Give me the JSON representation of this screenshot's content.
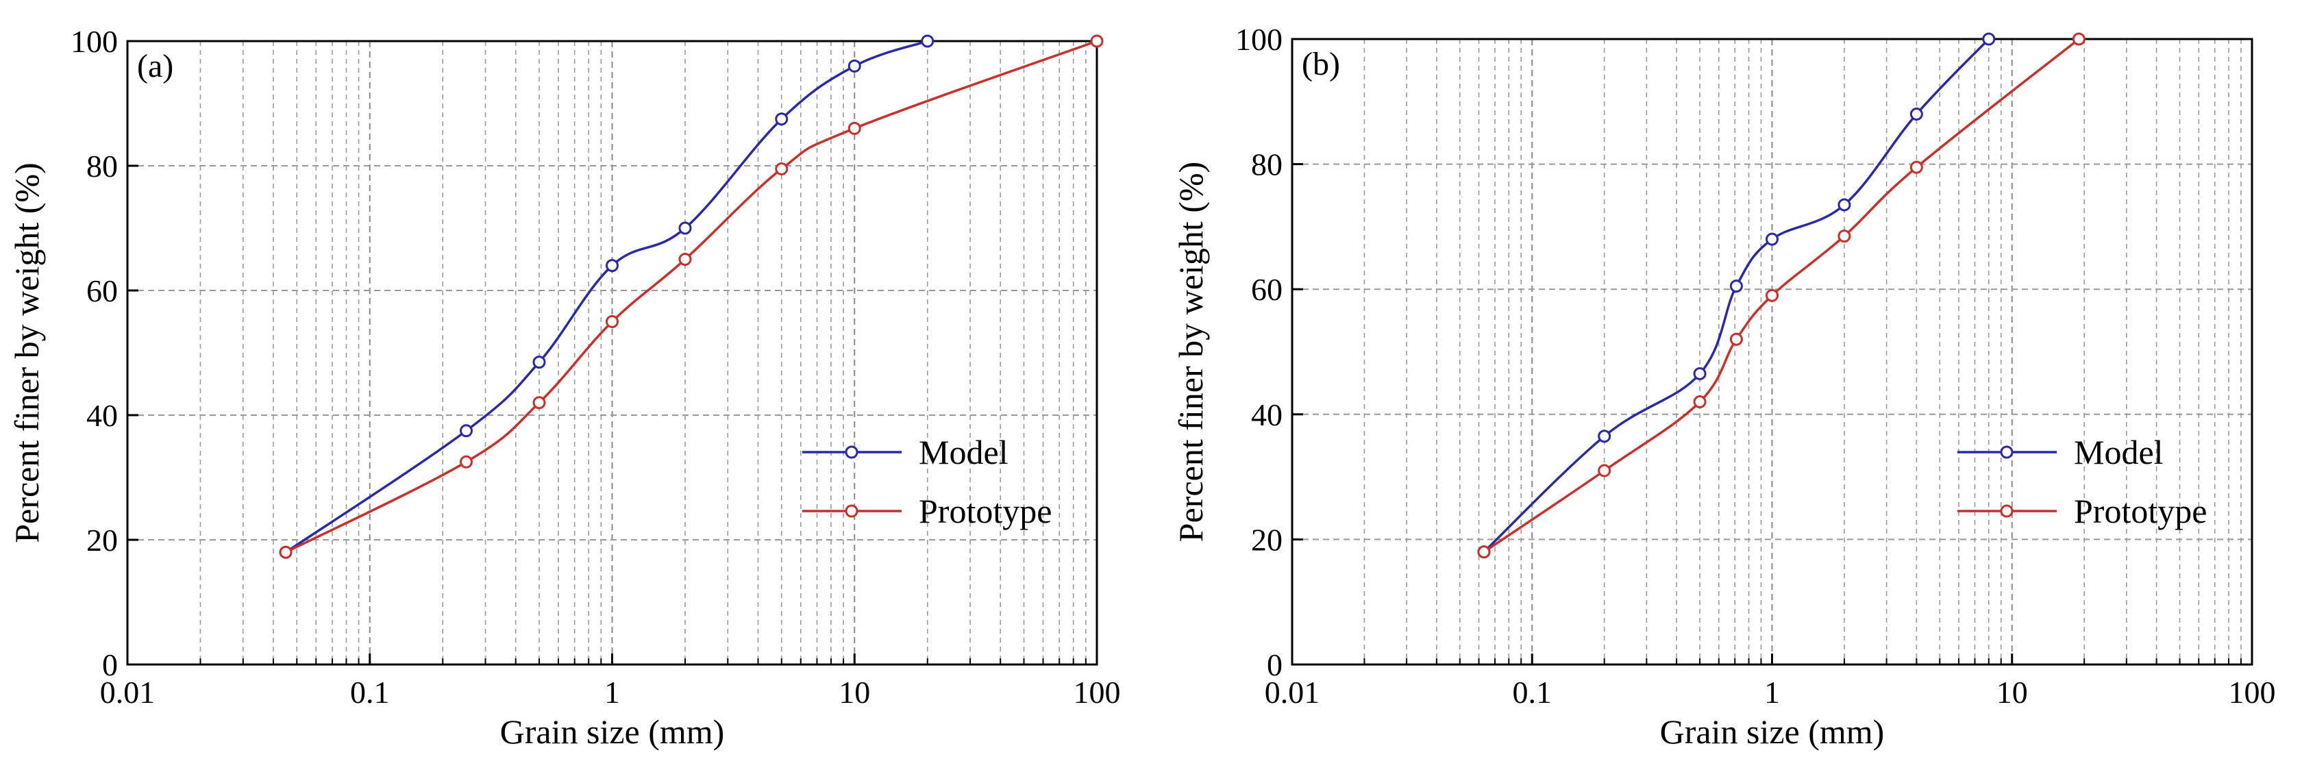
{
  "chart_data": [
    {
      "type": "line",
      "panel_label": "(a)",
      "xlabel": "Grain size (mm)",
      "ylabel": "Percent finer by weight (%)",
      "xscale": "log",
      "xlim": [
        0.01,
        100
      ],
      "ylim": [
        0,
        100
      ],
      "xticks": [
        "0.01",
        "0.1",
        "1",
        "10",
        "100"
      ],
      "yticks": [
        "0",
        "20",
        "40",
        "60",
        "80",
        "100"
      ],
      "grid": true,
      "legend_position": "lower-right",
      "series": [
        {
          "name": "Model",
          "color": "#2a2aa8",
          "x": [
            0.045,
            0.25,
            0.5,
            1,
            2,
            5,
            10,
            20
          ],
          "y": [
            18,
            37.5,
            48.5,
            64,
            70,
            87.5,
            96,
            100
          ]
        },
        {
          "name": "Prototype",
          "color": "#c8312a",
          "x": [
            0.045,
            0.25,
            0.5,
            1,
            2,
            5,
            10,
            100
          ],
          "y": [
            18,
            32.5,
            42,
            55,
            65,
            79.5,
            86,
            100
          ]
        }
      ]
    },
    {
      "type": "line",
      "panel_label": "(b)",
      "xlabel": "Grain size (mm)",
      "ylabel": "Percent finer by weight (%)",
      "xscale": "log",
      "xlim": [
        0.01,
        100
      ],
      "ylim": [
        0,
        100
      ],
      "xticks": [
        "0.01",
        "0.1",
        "1",
        "10",
        "100"
      ],
      "yticks": [
        "0",
        "20",
        "40",
        "60",
        "80",
        "100"
      ],
      "grid": true,
      "legend_position": "lower-right",
      "series": [
        {
          "name": "Model",
          "color": "#2a2aa8",
          "x": [
            0.063,
            0.2,
            0.5,
            0.71,
            1,
            2,
            4,
            8
          ],
          "y": [
            18,
            36.5,
            46.5,
            60.5,
            68,
            73.5,
            88,
            100
          ]
        },
        {
          "name": "Prototype",
          "color": "#c8312a",
          "x": [
            0.063,
            0.2,
            0.5,
            0.71,
            1,
            2,
            4,
            19
          ],
          "y": [
            18,
            31,
            42,
            52,
            59,
            68.5,
            79.5,
            100
          ]
        }
      ]
    }
  ]
}
